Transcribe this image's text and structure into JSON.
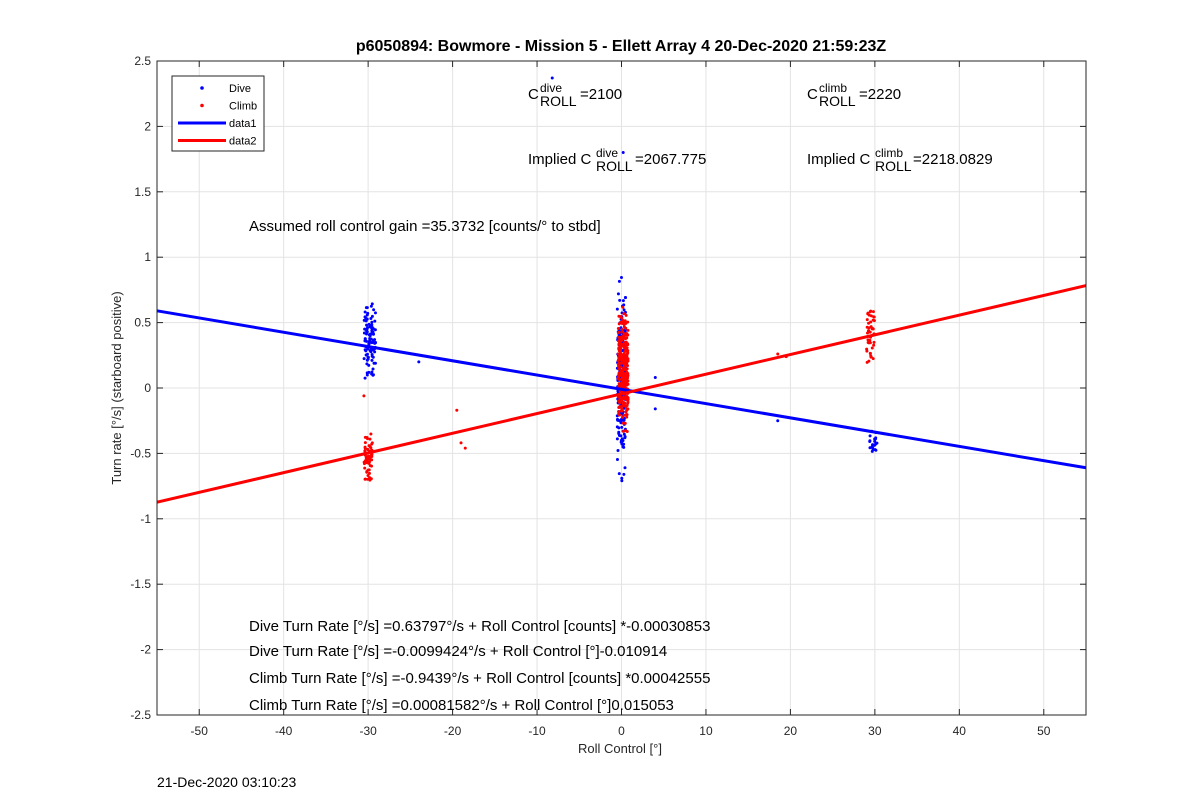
{
  "chart_data": {
    "type": "scatter",
    "title": "p6050894: Bowmore - Mission 5 - Ellett Array 4 20-Dec-2020 21:59:23Z",
    "xlabel": "Roll Control [°]",
    "ylabel": "Turn rate [°/s] (starboard positive)",
    "xlim": [
      -55,
      55
    ],
    "ylim": [
      -2.5,
      2.5
    ],
    "xticks": [
      -50,
      -40,
      -30,
      -20,
      -10,
      0,
      10,
      20,
      30,
      40,
      50
    ],
    "yticks": [
      -2.5,
      -2,
      -1.5,
      -1,
      -0.5,
      0,
      0.5,
      1,
      1.5,
      2,
      2.5
    ],
    "grid": true,
    "legend_position": "top-left",
    "legend": [
      {
        "label": "Dive",
        "color": "#0000ff",
        "style": "point"
      },
      {
        "label": "Climb",
        "color": "#ff0000",
        "style": "point"
      },
      {
        "label": "data1",
        "color": "#0000ff",
        "style": "line"
      },
      {
        "label": "data2",
        "color": "#ff0000",
        "style": "line"
      }
    ],
    "series": [
      {
        "name": "Dive",
        "type": "scatter",
        "color": "#0000ff",
        "clusters": [
          {
            "x_center": -29.8,
            "x_spread": 0.7,
            "y_min": -0.02,
            "y_max": 0.74,
            "count": 110
          },
          {
            "x_center": 0.0,
            "x_spread": 0.5,
            "y_min": -0.84,
            "y_max": 1.03,
            "count": 220
          },
          {
            "x_center": 29.8,
            "x_spread": 0.5,
            "y_min": -0.56,
            "y_max": -0.28,
            "count": 22
          }
        ],
        "outliers": [
          [
            -8.2,
            2.37
          ],
          [
            -24,
            0.2
          ],
          [
            0.2,
            1.8
          ],
          [
            4,
            0.08
          ],
          [
            4,
            -0.16
          ],
          [
            18.5,
            -0.25
          ]
        ]
      },
      {
        "name": "Climb",
        "type": "scatter",
        "color": "#ff0000",
        "clusters": [
          {
            "x_center": -30.0,
            "x_spread": 0.5,
            "y_min": -0.76,
            "y_max": -0.3,
            "count": 70
          },
          {
            "x_center": 0.2,
            "x_spread": 0.6,
            "y_min": -0.5,
            "y_max": 0.7,
            "count": 320
          },
          {
            "x_center": 29.5,
            "x_spread": 0.5,
            "y_min": 0.07,
            "y_max": 0.74,
            "count": 45
          }
        ],
        "outliers": [
          [
            -30.5,
            -0.06
          ],
          [
            -19.5,
            -0.17
          ],
          [
            -19.0,
            -0.42
          ],
          [
            -18.5,
            -0.46
          ],
          [
            18.5,
            0.26
          ],
          [
            19.5,
            0.24
          ]
        ]
      },
      {
        "name": "data1",
        "type": "line",
        "color": "#0000ff",
        "x": [
          -55,
          55
        ],
        "y": [
          0.59,
          -0.61
        ]
      },
      {
        "name": "data2",
        "type": "line",
        "color": "#ff0000",
        "x": [
          -55,
          55
        ],
        "y": [
          -0.873,
          0.783
        ]
      }
    ],
    "annotations": {
      "cdive": {
        "base": "C",
        "sup": "dive",
        "sub": "ROLL",
        "value": "=2100"
      },
      "cclimb": {
        "base": "C",
        "sup": "climb",
        "sub": "ROLL",
        "value": "=2220"
      },
      "implied_dive": {
        "prefix": "Implied C",
        "sup": "dive",
        "sub": "ROLL",
        "value": "=2067.775"
      },
      "implied_climb": {
        "prefix": "Implied C",
        "sup": "climb",
        "sub": "ROLL",
        "value": "=2218.0829"
      },
      "gain": "Assumed roll control gain =35.3732 [counts/° to stbd]",
      "eq1": "Dive Turn Rate [°/s] =0.63797°/s + Roll Control [counts] *-0.00030853",
      "eq2": "Dive Turn Rate [°/s] =-0.0099424°/s + Roll Control [°]-0.010914",
      "eq3": "Climb Turn Rate [°/s] =-0.9439°/s + Roll Control [counts] *0.00042555",
      "eq4": "Climb Turn Rate [°/s] =0.00081582°/s + Roll Control [°]0.015053"
    }
  },
  "timestamp": "21-Dec-2020 03:10:23"
}
